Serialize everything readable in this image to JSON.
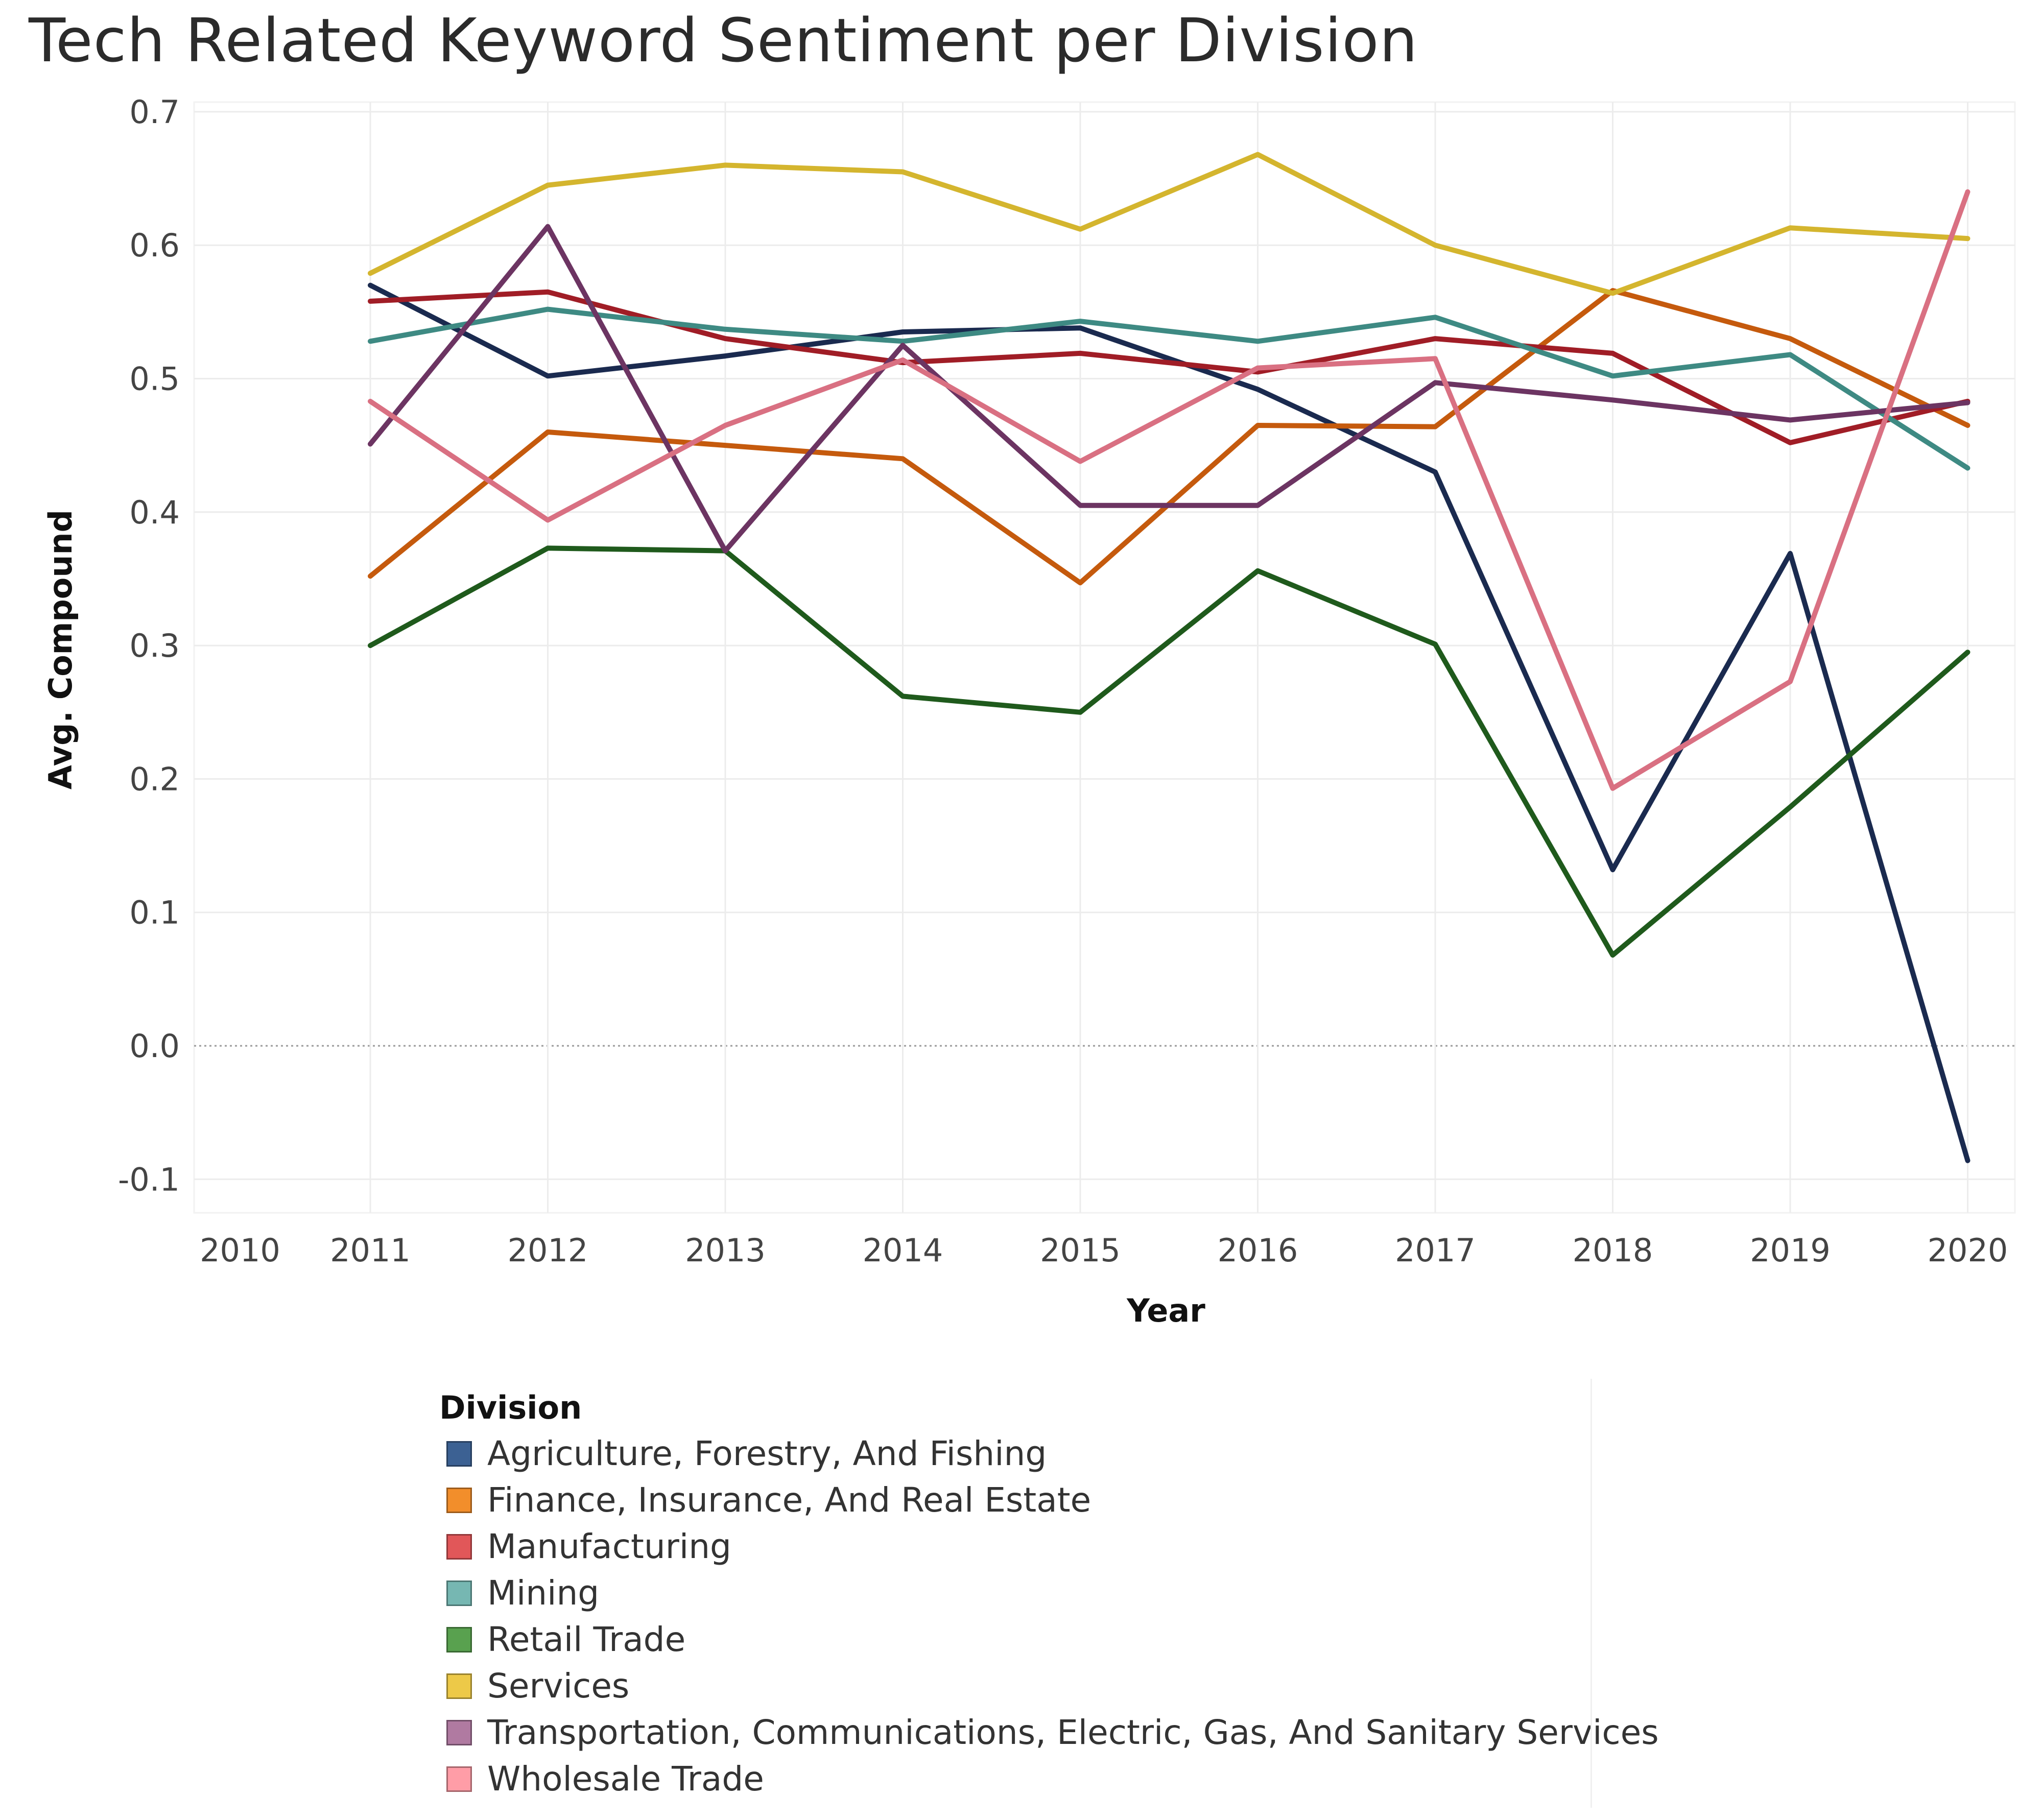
{
  "chart_data": {
    "type": "line",
    "title": "Tech Related Keyword Sentiment per Division",
    "xlabel": "Year",
    "ylabel": "Avg. Compound",
    "x": [
      2011,
      2012,
      2013,
      2014,
      2015,
      2016,
      2017,
      2018,
      2019,
      2020
    ],
    "xticks": [
      "2010",
      "2011",
      "2012",
      "2013",
      "2014",
      "2015",
      "2016",
      "2017",
      "2018",
      "2019",
      "2020"
    ],
    "xlim": [
      2010,
      2020
    ],
    "ylim": [
      -0.12,
      0.72
    ],
    "yticks": [
      "-0.1",
      "0.0",
      "0.1",
      "0.2",
      "0.3",
      "0.4",
      "0.5",
      "0.6",
      "0.7"
    ],
    "grid": true,
    "zero_line": "dotted",
    "legend_position": "bottom",
    "legend_title": "Division",
    "series": [
      {
        "name": "Agriculture, Forestry, And Fishing",
        "line_color": "#1a2a4f",
        "swatch_color": "#3c6193",
        "values": [
          0.57,
          0.502,
          0.517,
          0.535,
          0.538,
          0.492,
          0.43,
          0.132,
          0.369,
          -0.086
        ]
      },
      {
        "name": "Finance, Insurance, And Real Estate",
        "line_color": "#c55a0d",
        "swatch_color": "#f28e2b",
        "values": [
          0.352,
          0.46,
          0.45,
          0.44,
          0.347,
          0.465,
          0.464,
          0.566,
          0.53,
          0.465
        ]
      },
      {
        "name": "Manufacturing",
        "line_color": "#a01d26",
        "swatch_color": "#e15759",
        "values": [
          0.558,
          0.565,
          0.53,
          0.512,
          0.519,
          0.505,
          0.53,
          0.519,
          0.452,
          0.483
        ]
      },
      {
        "name": "Mining",
        "line_color": "#3e8a83",
        "swatch_color": "#76b7b2",
        "values": [
          0.528,
          0.552,
          0.537,
          0.528,
          0.543,
          0.528,
          0.546,
          0.502,
          0.518,
          0.433
        ]
      },
      {
        "name": "Retail Trade",
        "line_color": "#1f5a1c",
        "swatch_color": "#59a14f",
        "values": [
          0.3,
          0.373,
          0.371,
          0.262,
          0.25,
          0.356,
          0.301,
          0.068,
          0.179,
          0.295
        ]
      },
      {
        "name": "Services",
        "line_color": "#d4b52e",
        "swatch_color": "#edc948",
        "values": [
          0.579,
          0.645,
          0.66,
          0.655,
          0.612,
          0.668,
          0.6,
          0.564,
          0.613,
          0.605
        ]
      },
      {
        "name": "Transportation, Communications, Electric, Gas, And Sanitary Services",
        "line_color": "#6c3462",
        "swatch_color": "#b07aa1",
        "values": [
          0.451,
          0.614,
          0.371,
          0.525,
          0.405,
          0.405,
          0.497,
          0.484,
          0.469,
          0.482
        ]
      },
      {
        "name": "Wholesale Trade",
        "line_color": "#d97082",
        "swatch_color": "#ff9da7",
        "values": [
          0.483,
          0.394,
          0.465,
          0.514,
          0.438,
          0.508,
          0.515,
          0.193,
          0.273,
          0.64
        ]
      }
    ]
  }
}
